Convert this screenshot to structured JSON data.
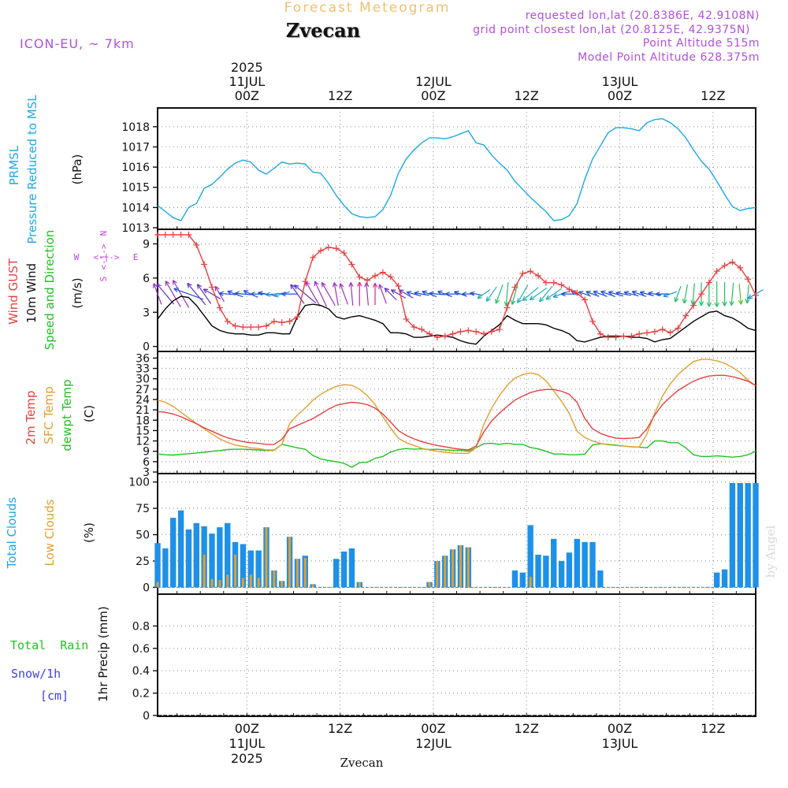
{
  "header": {
    "forecast_title": "Forecast Meteogram",
    "place": "Zvecan",
    "model": "ICON-EU, ~ 7km",
    "requested": "requested lon,lat (20.8386E, 42.9108N)",
    "grid_point": "grid point closest lon,lat (20.8125E, 42.9375N)",
    "point_alt": "Point Altitude 515m",
    "model_alt": "Model Point Altitude 628.375m",
    "watermark": "by Angel",
    "footer_place": "Zvecan"
  },
  "colors": {
    "pressure": "#1ea7e8",
    "gust": "#e84040",
    "wind": "#000000",
    "temp2m": "#e84040",
    "sfc": "#e0a030",
    "dewpt": "#22c022",
    "total_clouds": "#1e90e8",
    "low_clouds": "#e0a030",
    "rain": "#22c022",
    "snow": "#4040e0",
    "header_purple": "#b050e0",
    "title_orange": "#f0c070",
    "compass": "#c040e0"
  },
  "time_axis": {
    "top_labels": [
      {
        "h": 0,
        "lines": [
          "2025",
          "11JUL",
          "00Z"
        ]
      },
      {
        "h": 12,
        "lines": [
          "12Z"
        ]
      },
      {
        "h": 24,
        "lines": [
          "12JUL",
          "00Z"
        ]
      },
      {
        "h": 36,
        "lines": [
          "12Z"
        ]
      },
      {
        "h": 48,
        "lines": [
          "13JUL",
          "00Z"
        ]
      },
      {
        "h": 60,
        "lines": [
          "12Z"
        ]
      }
    ],
    "bottom_labels": [
      {
        "h": 0,
        "lines": [
          "00Z",
          "11JUL",
          "2025"
        ]
      },
      {
        "h": 12,
        "lines": [
          "12Z"
        ]
      },
      {
        "h": 24,
        "lines": [
          "00Z",
          "12JUL"
        ]
      },
      {
        "h": 36,
        "lines": [
          "12Z"
        ]
      },
      {
        "h": 48,
        "lines": [
          "00Z",
          "13JUL"
        ]
      },
      {
        "h": 60,
        "lines": [
          "12Z"
        ]
      }
    ],
    "x_range_hours": [
      -11.5,
      65.5
    ]
  },
  "panel_labels": {
    "pressure": [
      "PRMSL",
      "Pressure Reduced to MSL"
    ],
    "pressure_unit": "(hPa)",
    "wind_gust": "Wind GUST",
    "wind_10m": "10m Wind",
    "wind_speed_dir": "Speed and Direction",
    "wind_unit": "(m/s)",
    "compass": {
      "n": "N",
      "s": "S",
      "e": "E",
      "w": "W",
      "arrow_we": "<-|->",
      "arrow_ns": "<-|->"
    },
    "temp2m": "2m Temp",
    "sfc": "SFC Temp",
    "dewpt": "dewpt Temp",
    "temp_unit": "(C)",
    "total_clouds": "Total Clouds",
    "low_clouds": "Low Clouds",
    "cloud_unit": "(%)",
    "total_rain": "Total  Rain",
    "snow": "Snow/1h",
    "snow_unit": "[cm]",
    "precip": "1hr Precip (mm)"
  },
  "chart_data": [
    {
      "type": "line",
      "name": "pressure",
      "ylim": [
        1013,
        1018.5
      ],
      "yticks": [
        1013,
        1014,
        1015,
        1016,
        1017,
        1018
      ],
      "x": [
        -11.5,
        -10.5,
        -9.5,
        -8.5,
        -7.5,
        -6.5,
        -5.5,
        -4.5,
        -3.5,
        -2.5,
        -1.5,
        -0.5,
        0.5,
        1.5,
        2.5,
        3.5,
        4.5,
        5.5,
        6.5,
        7.5,
        8.5,
        9.5,
        10.5,
        11.5,
        12.5,
        13.5,
        14.5,
        15.5,
        16.5,
        17.5,
        18.5,
        19.5,
        20.5,
        21.5,
        22.5,
        23.5,
        24.5,
        25.5,
        26.5,
        27.5,
        28.5,
        29.5,
        30.5,
        31.5,
        32.5,
        33.5,
        34.5,
        35.5,
        36.5,
        37.5,
        38.5,
        39.5,
        40.5,
        41.5,
        42.5,
        43.5,
        44.5,
        45.5,
        46.5,
        47.5,
        48.5,
        49.5,
        50.5,
        51.5,
        52.5,
        53.5,
        54.5,
        55.5,
        56.5,
        57.5,
        58.5,
        59.5,
        60.5,
        61.5,
        62.5,
        63.5,
        64.5,
        65.5
      ],
      "y": [
        1014.1,
        1013.8,
        1013.5,
        1013.35,
        1014.0,
        1014.2,
        1014.95,
        1015.15,
        1015.5,
        1015.9,
        1016.2,
        1016.35,
        1016.25,
        1015.85,
        1015.65,
        1015.95,
        1016.25,
        1016.15,
        1016.2,
        1016.15,
        1015.75,
        1015.7,
        1015.2,
        1014.6,
        1014.1,
        1013.7,
        1013.55,
        1013.5,
        1013.55,
        1013.9,
        1014.6,
        1015.7,
        1016.4,
        1016.85,
        1017.2,
        1017.45,
        1017.45,
        1017.4,
        1017.5,
        1017.65,
        1017.8,
        1017.2,
        1017.1,
        1016.6,
        1016.2,
        1015.85,
        1015.3,
        1014.9,
        1014.5,
        1014.15,
        1013.8,
        1013.35,
        1013.4,
        1013.6,
        1014.2,
        1015.4,
        1016.4,
        1017.05,
        1017.7,
        1017.95,
        1017.95,
        1017.9,
        1017.8,
        1018.2,
        1018.35,
        1018.4,
        1018.2,
        1017.9,
        1017.45,
        1016.85,
        1016.3,
        1015.9,
        1015.3,
        1014.65,
        1014.05,
        1013.85,
        1013.95,
        1014.0
      ]
    },
    {
      "type": "line",
      "name": "wind",
      "ylim": [
        -0.3,
        10
      ],
      "yticks": [
        0,
        3,
        6,
        9
      ],
      "x": [
        -11.5,
        -10.5,
        -9.5,
        -8.5,
        -7.5,
        -6.5,
        -5.5,
        -4.5,
        -3.5,
        -2.5,
        -1.5,
        -0.5,
        0.5,
        1.5,
        2.5,
        3.5,
        4.5,
        5.5,
        6.5,
        7.5,
        8.5,
        9.5,
        10.5,
        11.5,
        12.5,
        13.5,
        14.5,
        15.5,
        16.5,
        17.5,
        18.5,
        19.5,
        20.5,
        21.5,
        22.5,
        23.5,
        24.5,
        25.5,
        26.5,
        27.5,
        28.5,
        29.5,
        30.5,
        31.5,
        32.5,
        33.5,
        34.5,
        35.5,
        36.5,
        37.5,
        38.5,
        39.5,
        40.5,
        41.5,
        42.5,
        43.5,
        44.5,
        45.5,
        46.5,
        47.5,
        48.5,
        49.5,
        50.5,
        51.5,
        52.5,
        53.5,
        54.5,
        55.5,
        56.5,
        57.5,
        58.5,
        59.5,
        60.5,
        61.5,
        62.5,
        63.5,
        64.5,
        65.5
      ],
      "gust": [
        9.8,
        9.8,
        9.8,
        9.8,
        9.8,
        8.9,
        7.2,
        5.2,
        3.4,
        2.2,
        1.8,
        1.7,
        1.7,
        1.7,
        1.8,
        2.2,
        2.1,
        2.2,
        2.6,
        5.7,
        7.8,
        8.4,
        8.7,
        8.6,
        8.2,
        7.2,
        6.1,
        5.8,
        6.2,
        6.5,
        6.1,
        5.3,
        2.4,
        1.7,
        1.5,
        1.1,
        0.8,
        0.9,
        1.1,
        1.3,
        1.4,
        1.3,
        1.1,
        1.3,
        1.5,
        3.4,
        5.2,
        6.4,
        6.6,
        6.2,
        5.6,
        5.6,
        5.4,
        5.0,
        4.7,
        4.1,
        2.2,
        1.1,
        0.8,
        0.8,
        0.9,
        0.9,
        1.1,
        1.2,
        1.3,
        1.5,
        1.2,
        1.6,
        2.7,
        3.6,
        4.6,
        5.6,
        6.6,
        7.1,
        7.4,
        6.9,
        5.9,
        4.5
      ],
      "speed": [
        2.4,
        3.3,
        4.0,
        4.4,
        4.3,
        3.6,
        2.7,
        1.8,
        1.4,
        1.2,
        1.1,
        1.1,
        1.0,
        1.0,
        1.2,
        1.2,
        1.1,
        1.1,
        2.6,
        3.6,
        3.7,
        3.6,
        3.3,
        2.6,
        2.4,
        2.6,
        2.7,
        2.5,
        2.3,
        2.0,
        1.2,
        1.2,
        1.1,
        0.8,
        0.8,
        0.9,
        1.0,
        0.9,
        0.8,
        0.5,
        0.3,
        0.2,
        0.9,
        1.4,
        1.9,
        2.7,
        2.3,
        2.0,
        2.0,
        2.0,
        1.9,
        1.6,
        1.4,
        1.1,
        0.5,
        0.4,
        0.6,
        0.8,
        0.9,
        0.9,
        0.9,
        0.8,
        0.8,
        0.7,
        0.4,
        0.6,
        0.7,
        1.2,
        1.7,
        2.2,
        2.6,
        3.0,
        3.1,
        2.7,
        2.5,
        2.1,
        1.6,
        1.4
      ],
      "arrow_dir_deg": [
        340,
        320,
        330,
        330,
        290,
        320,
        325,
        300,
        330,
        275,
        290,
        275,
        295,
        270,
        280,
        265,
        255,
        270,
        325,
        310,
        330,
        335,
        330,
        350,
        340,
        355,
        0,
        355,
        0,
        340,
        315,
        300,
        300,
        285,
        280,
        290,
        275,
        290,
        270,
        290,
        270,
        280,
        235,
        215,
        200,
        185,
        195,
        210,
        230,
        235,
        220,
        235,
        250,
        270,
        300,
        290,
        290,
        290,
        290,
        285,
        280,
        285,
        290,
        285,
        280,
        270,
        250,
        200,
        190,
        185,
        180,
        180,
        180,
        180,
        185,
        175,
        185,
        240
      ]
    },
    {
      "type": "line",
      "name": "temperature",
      "ylim": [
        3,
        37
      ],
      "yticks": [
        3,
        6,
        9,
        12,
        15,
        18,
        21,
        24,
        27,
        30,
        33,
        36
      ],
      "x": [
        -11.5,
        -10.5,
        -9.5,
        -8.5,
        -7.5,
        -6.5,
        -5.5,
        -4.5,
        -3.5,
        -2.5,
        -1.5,
        -0.5,
        0.5,
        1.5,
        2.5,
        3.5,
        4.5,
        5.5,
        6.5,
        7.5,
        8.5,
        9.5,
        10.5,
        11.5,
        12.5,
        13.5,
        14.5,
        15.5,
        16.5,
        17.5,
        18.5,
        19.5,
        20.5,
        21.5,
        22.5,
        23.5,
        24.5,
        25.5,
        26.5,
        27.5,
        28.5,
        29.5,
        30.5,
        31.5,
        32.5,
        33.5,
        34.5,
        35.5,
        36.5,
        37.5,
        38.5,
        39.5,
        40.5,
        41.5,
        42.5,
        43.5,
        44.5,
        45.5,
        46.5,
        47.5,
        48.5,
        49.5,
        50.5,
        51.5,
        52.5,
        53.5,
        54.5,
        55.5,
        56.5,
        57.5,
        58.5,
        59.5,
        60.5,
        61.5,
        62.5,
        63.5,
        64.5,
        65.5
      ],
      "temp2m": [
        20.5,
        20.3,
        19.8,
        19.0,
        18.0,
        17.0,
        15.8,
        14.8,
        13.8,
        12.9,
        12.3,
        11.8,
        11.5,
        11.3,
        11.0,
        11.0,
        12.5,
        15.5,
        16.5,
        17.5,
        18.5,
        19.8,
        21.2,
        22.3,
        22.8,
        23.2,
        23.0,
        22.5,
        21.5,
        19.8,
        17.5,
        15.0,
        13.6,
        12.6,
        11.8,
        11.2,
        10.7,
        10.3,
        9.9,
        9.6,
        9.4,
        10.5,
        14.6,
        17.8,
        20.0,
        22.0,
        23.8,
        25.0,
        26.0,
        26.6,
        26.9,
        26.9,
        26.4,
        25.5,
        23.2,
        18.5,
        15.5,
        14.2,
        13.4,
        12.8,
        12.7,
        12.8,
        13.0,
        15.5,
        19.5,
        22.5,
        24.7,
        26.6,
        28.0,
        29.3,
        30.2,
        30.8,
        31.0,
        31.0,
        30.6,
        30.0,
        29.3,
        28.0
      ],
      "sfc": [
        23.8,
        23.2,
        22.0,
        20.3,
        18.7,
        17.0,
        15.5,
        14.0,
        12.6,
        11.6,
        10.8,
        10.4,
        10.0,
        9.8,
        9.4,
        9.4,
        11.0,
        17.0,
        19.5,
        21.5,
        23.8,
        25.5,
        26.8,
        27.8,
        28.3,
        28.1,
        27.0,
        25.1,
        22.5,
        19.0,
        15.7,
        12.8,
        11.5,
        10.7,
        9.9,
        9.4,
        9.0,
        8.7,
        8.5,
        8.4,
        8.4,
        10.0,
        16.8,
        21.5,
        25.1,
        28.1,
        30.2,
        31.2,
        31.7,
        31.2,
        29.4,
        26.5,
        23.5,
        20.0,
        14.8,
        13.0,
        12.0,
        11.3,
        10.9,
        10.7,
        10.5,
        10.3,
        10.2,
        14.0,
        20.0,
        25.0,
        28.5,
        31.2,
        33.2,
        35.0,
        35.6,
        35.6,
        35.2,
        34.5,
        33.3,
        31.8,
        29.6,
        28.0
      ],
      "dewpt": [
        8.2,
        8.0,
        7.9,
        8.1,
        8.3,
        8.5,
        8.7,
        9.0,
        9.2,
        9.5,
        9.6,
        9.6,
        9.5,
        9.4,
        9.2,
        9.3,
        11.0,
        10.5,
        10.0,
        9.6,
        7.8,
        6.8,
        6.3,
        6.0,
        5.5,
        4.4,
        5.7,
        5.8,
        7.0,
        7.5,
        8.8,
        9.5,
        9.8,
        9.6,
        9.7,
        9.5,
        9.6,
        9.4,
        9.3,
        9.3,
        9.0,
        10.0,
        11.2,
        11.3,
        11.0,
        11.3,
        11.0,
        11.0,
        10.1,
        9.7,
        9.0,
        8.2,
        8.2,
        8.0,
        8.0,
        8.2,
        10.8,
        11.2,
        11.0,
        10.8,
        10.5,
        10.3,
        10.2,
        10.0,
        12.0,
        12.0,
        11.5,
        11.5,
        10.0,
        8.0,
        7.5,
        7.5,
        7.7,
        7.5,
        7.3,
        7.5,
        8.0,
        9.0
      ]
    },
    {
      "type": "bar",
      "name": "clouds",
      "ylim": [
        -5,
        105
      ],
      "yticks": [
        0,
        25,
        50,
        75,
        100
      ],
      "x": [
        -11.5,
        -10.5,
        -9.5,
        -8.5,
        -7.5,
        -6.5,
        -5.5,
        -4.5,
        -3.5,
        -2.5,
        -1.5,
        -0.5,
        0.5,
        1.5,
        2.5,
        3.5,
        4.5,
        5.5,
        6.5,
        7.5,
        8.5,
        9.5,
        10.5,
        11.5,
        12.5,
        13.5,
        14.5,
        15.5,
        16.5,
        17.5,
        18.5,
        19.5,
        20.5,
        21.5,
        22.5,
        23.5,
        24.5,
        25.5,
        26.5,
        27.5,
        28.5,
        29.5,
        30.5,
        31.5,
        32.5,
        33.5,
        34.5,
        35.5,
        36.5,
        37.5,
        38.5,
        39.5,
        40.5,
        41.5,
        42.5,
        43.5,
        44.5,
        45.5,
        46.5,
        47.5,
        48.5,
        49.5,
        50.5,
        51.5,
        52.5,
        53.5,
        54.5,
        55.5,
        56.5,
        57.5,
        58.5,
        59.5,
        60.5,
        61.5,
        62.5,
        63.5,
        64.5,
        65.5
      ],
      "total": [
        42,
        37,
        66,
        73,
        55,
        61,
        58,
        51,
        57,
        61,
        43,
        41,
        35,
        35,
        57,
        16,
        6,
        48,
        27,
        30,
        3,
        0,
        0,
        27,
        34,
        37,
        5,
        0,
        0,
        0,
        0,
        0,
        0,
        0,
        0,
        5,
        25,
        30,
        36,
        40,
        38,
        0,
        0,
        0,
        0,
        0,
        16,
        14,
        59,
        31,
        30,
        46,
        25,
        33,
        46,
        43,
        43,
        16,
        0,
        0,
        0,
        0,
        0,
        0,
        0,
        0,
        0,
        0,
        0,
        0,
        0,
        0,
        14,
        17,
        99,
        99,
        99,
        99
      ],
      "low": [
        5,
        0,
        0,
        0,
        0,
        0,
        31,
        8,
        7,
        12,
        31,
        9,
        12,
        9,
        57,
        16,
        6,
        48,
        27,
        28,
        3,
        0,
        0,
        0,
        0,
        0,
        5,
        0,
        0,
        0,
        0,
        0,
        0,
        0,
        0,
        5,
        25,
        30,
        36,
        40,
        38,
        0,
        0,
        0,
        0,
        0,
        0,
        0,
        10,
        0,
        0,
        0,
        0,
        0,
        0,
        0,
        0,
        0,
        0,
        0,
        0,
        0,
        0,
        0,
        0,
        0,
        0,
        0,
        0,
        0,
        0,
        0,
        0,
        0,
        0,
        0,
        0,
        0
      ]
    },
    {
      "type": "bar",
      "name": "precipitation",
      "ylim": [
        0,
        1.0
      ],
      "yticks": [
        0,
        0.2,
        0.4,
        0.6,
        0.8
      ],
      "ytick_labels": [
        "0",
        "0.2",
        "0.4",
        "0.6",
        "0.8"
      ],
      "rain": [],
      "snow": []
    }
  ]
}
